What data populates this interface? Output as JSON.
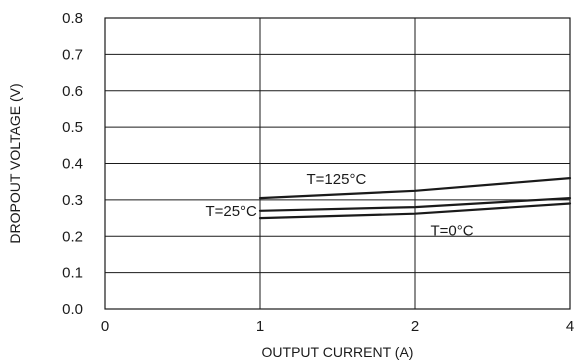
{
  "chart_data": {
    "type": "line",
    "xlabel": "OUTPUT CURRENT (A)",
    "ylabel": "DROPOUT VOLTAGE (V)",
    "x_tick_labels": [
      "0",
      "1",
      "2",
      "4"
    ],
    "y_tick_labels": [
      "0.0",
      "0.1",
      "0.2",
      "0.3",
      "0.4",
      "0.5",
      "0.6",
      "0.7",
      "0.8"
    ],
    "ylim": [
      0.0,
      0.8
    ],
    "grid": true,
    "series": [
      {
        "name": "T=125°C",
        "x": [
          1,
          2,
          4
        ],
        "y": [
          0.305,
          0.325,
          0.36
        ]
      },
      {
        "name": "T=25°C",
        "x": [
          1,
          2,
          4
        ],
        "y": [
          0.27,
          0.28,
          0.305
        ]
      },
      {
        "name": "T=0°C",
        "x": [
          1,
          2,
          4
        ],
        "y": [
          0.25,
          0.262,
          0.29
        ]
      }
    ]
  }
}
